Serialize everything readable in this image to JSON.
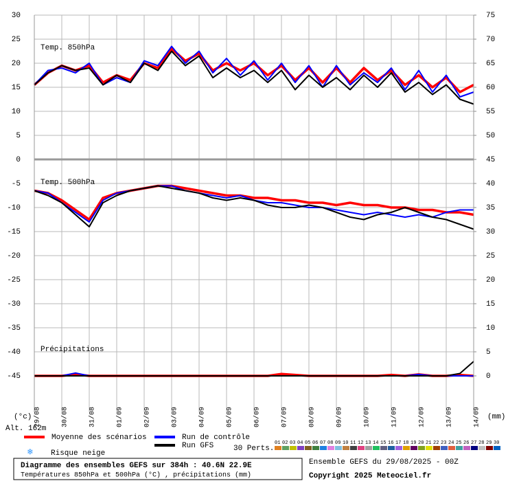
{
  "chart_data": [
    {
      "type": "line",
      "label": "Temp. 850hPa",
      "x": [
        0,
        12,
        24,
        36,
        48,
        60,
        72,
        84,
        96,
        108,
        120,
        132,
        144,
        156,
        168,
        180,
        192,
        204,
        216,
        228,
        240,
        252,
        264,
        276,
        288,
        300,
        312,
        324,
        336,
        348,
        360,
        372,
        384
      ],
      "xlim": [
        0,
        384
      ],
      "ylim": [
        0,
        30
      ],
      "yticks": [
        0,
        5,
        10,
        15,
        20,
        25,
        30
      ],
      "y2lim": [
        45,
        75
      ],
      "y2ticks": [
        45,
        50,
        55,
        60,
        65,
        70,
        75
      ],
      "grid": true,
      "series": [
        {
          "name": "Moyenne des scénarios",
          "color": "#ff0000",
          "values": [
            15.5,
            18,
            19.5,
            18.5,
            19.5,
            16,
            17.5,
            16.5,
            20,
            19,
            23,
            20.5,
            22,
            18.5,
            20,
            18.5,
            20,
            17.5,
            19.5,
            16.5,
            19,
            16,
            19,
            16,
            19,
            16.5,
            18.5,
            15.5,
            17.5,
            15,
            17,
            14,
            15.5
          ]
        },
        {
          "name": "Run de contrôle",
          "color": "#0000ff",
          "values": [
            15.5,
            18.5,
            19,
            18,
            20,
            15.5,
            17,
            16,
            20.5,
            19.5,
            23.5,
            20,
            22.5,
            18,
            21,
            17.5,
            20.5,
            16.5,
            20,
            16,
            19.5,
            15,
            19.5,
            15.5,
            18,
            16,
            19,
            14.5,
            18.5,
            14,
            17.5,
            13,
            14
          ]
        },
        {
          "name": "Run GFS",
          "color": "#000000",
          "values": [
            15.5,
            18,
            19.5,
            18.5,
            19,
            15.5,
            17.5,
            16,
            20,
            18.5,
            22.5,
            19.5,
            21.5,
            17,
            19,
            17,
            18.5,
            16,
            18.5,
            14.5,
            17.5,
            15,
            17,
            14.5,
            17.5,
            15,
            18,
            14,
            16,
            13.5,
            15.5,
            12.5,
            11.5
          ]
        }
      ]
    },
    {
      "type": "line",
      "label": "Temp. 500hPa",
      "label2": "Précipitations",
      "ylabel": "(°c)",
      "y2label": "(mm)",
      "x": [
        0,
        12,
        24,
        36,
        48,
        60,
        72,
        84,
        96,
        108,
        120,
        132,
        144,
        156,
        168,
        180,
        192,
        204,
        216,
        228,
        240,
        252,
        264,
        276,
        288,
        300,
        312,
        324,
        336,
        348,
        360,
        372,
        384
      ],
      "xlim": [
        0,
        384
      ],
      "xticks": [
        {
          "value": 0,
          "label": "29/08"
        },
        {
          "value": 24,
          "label": "30/08"
        },
        {
          "value": 48,
          "label": "31/08"
        },
        {
          "value": 72,
          "label": "01/09"
        },
        {
          "value": 96,
          "label": "02/09"
        },
        {
          "value": 120,
          "label": "03/09"
        },
        {
          "value": 144,
          "label": "04/09"
        },
        {
          "value": 168,
          "label": "05/09"
        },
        {
          "value": 192,
          "label": "06/09"
        },
        {
          "value": 216,
          "label": "07/09"
        },
        {
          "value": 240,
          "label": "08/09"
        },
        {
          "value": 264,
          "label": "09/09"
        },
        {
          "value": 288,
          "label": "10/09"
        },
        {
          "value": 312,
          "label": "11/09"
        },
        {
          "value": 336,
          "label": "12/09"
        },
        {
          "value": 360,
          "label": "13/09"
        },
        {
          "value": 384,
          "label": "14/09"
        }
      ],
      "ylim": [
        -52.5,
        0
      ],
      "yticks": [
        -5,
        -10,
        -15,
        -20,
        -25,
        -30,
        -35,
        -40,
        -45
      ],
      "y2lim": [
        -7.5,
        45
      ],
      "y2ticks": [
        0,
        5,
        10,
        15,
        20,
        25,
        30,
        35,
        40
      ],
      "grid": true,
      "series": [
        {
          "color": "#ff0000",
          "values": [
            -6.5,
            -7,
            -8.5,
            -10.5,
            -12.5,
            -8,
            -7,
            -6.5,
            -6,
            -5.5,
            -5.5,
            -6,
            -6.5,
            -7,
            -7.5,
            -7.5,
            -8,
            -8,
            -8.5,
            -8.5,
            -9,
            -9,
            -9.5,
            -9,
            -9.5,
            -9.5,
            -10,
            -10,
            -10.5,
            -10.5,
            -11,
            -11,
            -11.5
          ]
        },
        {
          "color": "#0000ff",
          "values": [
            -6.5,
            -7,
            -9,
            -11,
            -13,
            -8.5,
            -7,
            -6.5,
            -6,
            -5.5,
            -5.5,
            -6.5,
            -7,
            -7.5,
            -8,
            -7.5,
            -8.5,
            -9,
            -9,
            -9.5,
            -10,
            -10,
            -10.5,
            -11,
            -11.5,
            -11,
            -11.5,
            -12,
            -11.5,
            -12,
            -11,
            -10.5,
            -10.5
          ]
        },
        {
          "color": "#000000",
          "values": [
            -6.5,
            -7.5,
            -9,
            -11.5,
            -14,
            -9,
            -7.5,
            -6.5,
            -6,
            -5.5,
            -6,
            -6.5,
            -7,
            -8,
            -8.5,
            -8,
            -8.5,
            -9.5,
            -10,
            -10,
            -9.5,
            -10,
            -11,
            -12,
            -12.5,
            -11.5,
            -11,
            -10,
            -11,
            -12,
            -12.5,
            -13.5,
            -14.5
          ]
        },
        {
          "color": "#ff0000",
          "axis": "y2",
          "values": [
            0,
            0,
            0,
            0.3,
            0,
            0,
            0,
            0,
            0,
            0,
            0,
            0,
            0,
            0,
            0,
            0,
            0,
            0,
            0.4,
            0.2,
            0,
            0,
            0,
            0,
            0,
            0,
            0.2,
            0,
            0.3,
            0,
            0,
            0.2,
            0
          ]
        },
        {
          "color": "#0000ff",
          "axis": "y2",
          "values": [
            0,
            0,
            0,
            0.6,
            0,
            0,
            0,
            0,
            0,
            0,
            0,
            0,
            0,
            0,
            0,
            0,
            0,
            0,
            0,
            0,
            0,
            0,
            0,
            0,
            0,
            0,
            0,
            0,
            0.3,
            0,
            0,
            0,
            0
          ]
        },
        {
          "color": "#000000",
          "axis": "y2",
          "values": [
            0,
            0,
            0,
            0,
            0,
            0,
            0,
            0,
            0,
            0,
            0,
            0,
            0,
            0,
            0,
            0,
            0,
            0,
            0,
            0,
            0,
            0,
            0,
            0,
            0,
            0,
            0,
            0,
            0,
            0,
            0,
            0.5,
            3
          ]
        }
      ]
    }
  ],
  "altitude": "Alt. 162m",
  "snow": "Risque neige",
  "perturbations": {
    "label": "30 Perts.",
    "members": [
      {
        "name": "01",
        "color": "#e08020"
      },
      {
        "name": "02",
        "color": "#60a060"
      },
      {
        "name": "03",
        "color": "#c0c000"
      },
      {
        "name": "04",
        "color": "#8040c0"
      },
      {
        "name": "05",
        "color": "#806020"
      },
      {
        "name": "06",
        "color": "#408040"
      },
      {
        "name": "07",
        "color": "#2080e0"
      },
      {
        "name": "08",
        "color": "#e080e0"
      },
      {
        "name": "09",
        "color": "#80c0e0"
      },
      {
        "name": "10",
        "color": "#c08040"
      },
      {
        "name": "11",
        "color": "#404040"
      },
      {
        "name": "12",
        "color": "#e04080"
      },
      {
        "name": "13",
        "color": "#a0a0a0"
      },
      {
        "name": "14",
        "color": "#20c060"
      },
      {
        "name": "15",
        "color": "#606080"
      },
      {
        "name": "16",
        "color": "#2060a0"
      },
      {
        "name": "17",
        "color": "#a060e0"
      },
      {
        "name": "18",
        "color": "#e0a000"
      },
      {
        "name": "19",
        "color": "#600060"
      },
      {
        "name": "20",
        "color": "#80a020"
      },
      {
        "name": "21",
        "color": "#e0e000"
      },
      {
        "name": "22",
        "color": "#a04000"
      },
      {
        "name": "23",
        "color": "#4060c0"
      },
      {
        "name": "24",
        "color": "#e06040"
      },
      {
        "name": "25",
        "color": "#40a0a0"
      },
      {
        "name": "26",
        "color": "#c060c0"
      },
      {
        "name": "27",
        "color": "#000080"
      },
      {
        "name": "28",
        "color": "#c0c0c0"
      },
      {
        "name": "29",
        "color": "#800000"
      },
      {
        "name": "30",
        "color": "#0060c0"
      }
    ]
  },
  "footer": {
    "title": "Diagramme des ensembles GEFS sur 384h : 40.6N 22.9E",
    "subtitle": "Températures 850hPa et 500hPa (°C) , précipitations (mm)",
    "run": "Ensemble GEFS du 29/08/2025 - 00Z",
    "copyright": "Copyright 2025 Meteociel.fr"
  }
}
